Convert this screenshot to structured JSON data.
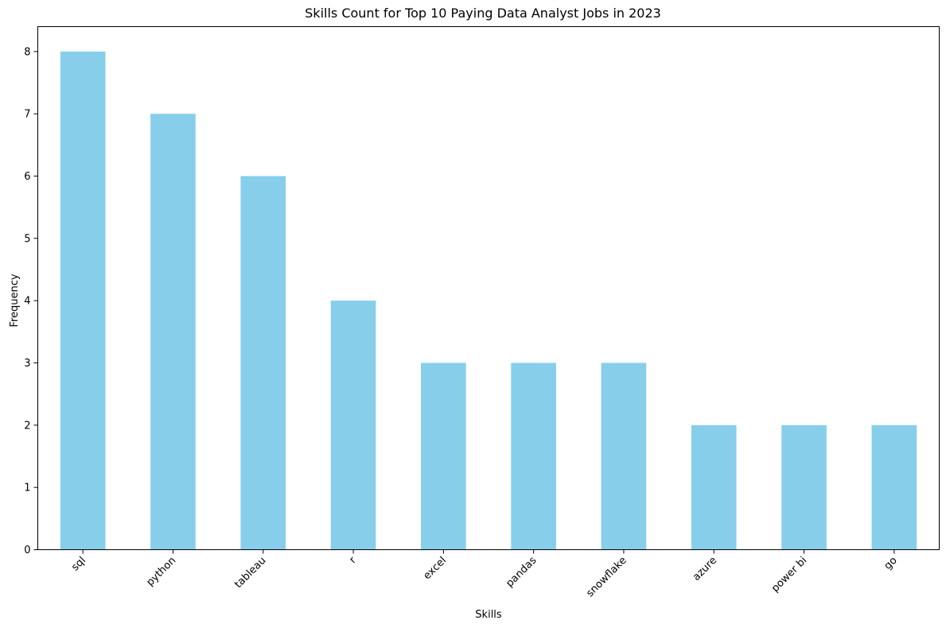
{
  "chart_data": {
    "type": "bar",
    "title": "Skills Count for Top 10 Paying Data Analyst Jobs in 2023",
    "xlabel": "Skills",
    "ylabel": "Frequency",
    "categories": [
      "sql",
      "python",
      "tableau",
      "r",
      "excel",
      "pandas",
      "snowflake",
      "azure",
      "power bi",
      "go"
    ],
    "values": [
      8,
      7,
      6,
      4,
      3,
      3,
      3,
      2,
      2,
      2
    ],
    "ylim": [
      0,
      8.4
    ],
    "yticks": [
      "0",
      "1",
      "2",
      "3",
      "4",
      "5",
      "6",
      "7",
      "8"
    ],
    "grid": false,
    "legend": "none",
    "bar_color": "#87CEEB",
    "xtick_rotation": "45deg"
  }
}
